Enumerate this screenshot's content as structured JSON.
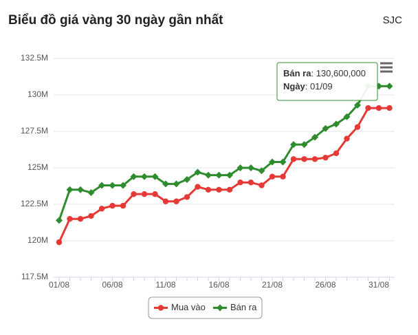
{
  "header": {
    "title": "Biểu đồ giá vàng 30 ngày gần nhất",
    "source": "SJC"
  },
  "chart_data": {
    "type": "line",
    "categories": [
      "01/08",
      null,
      null,
      null,
      null,
      "06/08",
      null,
      null,
      null,
      null,
      "11/08",
      null,
      null,
      null,
      null,
      "16/08",
      null,
      null,
      null,
      null,
      "21/08",
      null,
      null,
      null,
      null,
      "26/08",
      null,
      null,
      null,
      null,
      "31/08",
      null
    ],
    "series": [
      {
        "name": "Mua vào",
        "color": "#e53935",
        "marker": "circle",
        "values": [
          119900000,
          121500000,
          121500000,
          121700000,
          122200000,
          122400000,
          122400000,
          123200000,
          123200000,
          123200000,
          122700000,
          122700000,
          123000000,
          123700000,
          123500000,
          123500000,
          123500000,
          124000000,
          124000000,
          123800000,
          124400000,
          124400000,
          125600000,
          125600000,
          125600000,
          125700000,
          126000000,
          127000000,
          127800000,
          129100000,
          129100000,
          129100000
        ]
      },
      {
        "name": "Bán ra",
        "color": "#2e8b2e",
        "marker": "diamond",
        "values": [
          121400000,
          123500000,
          123500000,
          123300000,
          123800000,
          123800000,
          123800000,
          124400000,
          124400000,
          124400000,
          123900000,
          123900000,
          124200000,
          124700000,
          124500000,
          124500000,
          124500000,
          125000000,
          125000000,
          124800000,
          125400000,
          125400000,
          126600000,
          126600000,
          127100000,
          127700000,
          128000000,
          128500000,
          129300000,
          130600000,
          130600000,
          130600000
        ]
      }
    ],
    "ylim": [
      117500000,
      132500000
    ],
    "yticks": [
      {
        "value": 117500000,
        "label": "117.5M"
      },
      {
        "value": 120000000,
        "label": "120M"
      },
      {
        "value": 122500000,
        "label": "122.5M"
      },
      {
        "value": 125000000,
        "label": "125M"
      },
      {
        "value": 127500000,
        "label": "127.5M"
      },
      {
        "value": 130000000,
        "label": "130M"
      },
      {
        "value": 132500000,
        "label": "132.5M"
      }
    ],
    "grid": true,
    "tooltip": {
      "name_label": "Bán ra",
      "value_label": ": 130,600,000",
      "date_key": "Ngày",
      "date": ": 01/09"
    }
  }
}
